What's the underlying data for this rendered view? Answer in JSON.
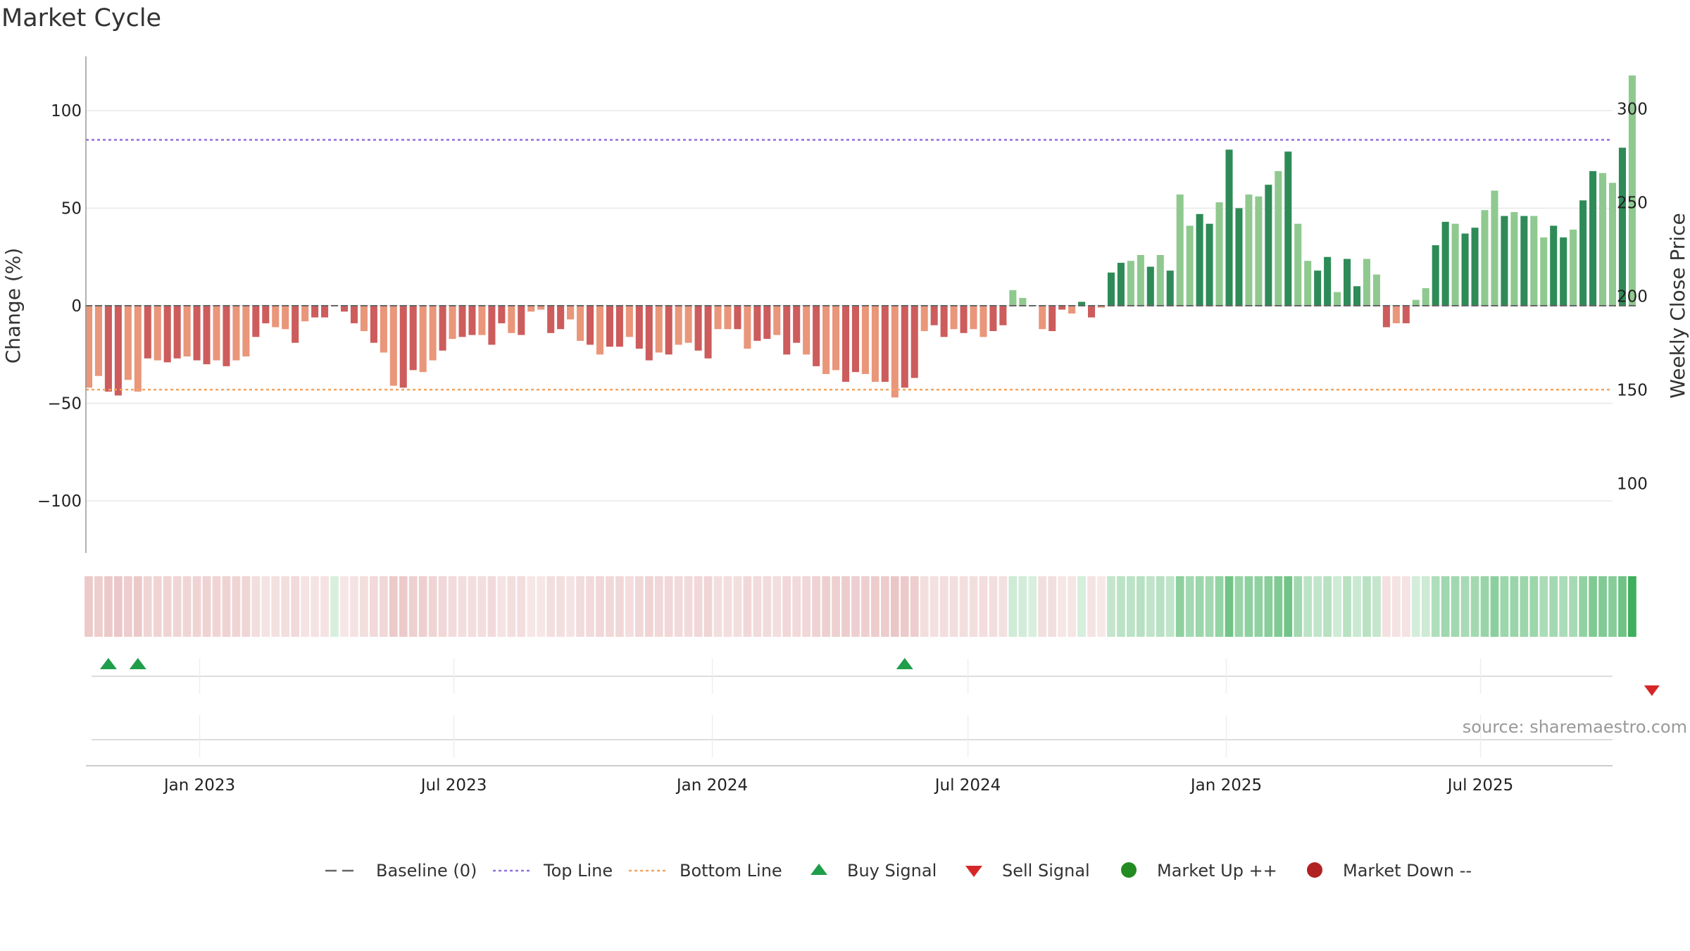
{
  "title": "Market Cycle",
  "source": "source: sharemaestro.com",
  "colors": {
    "neg_dark": "#cd5c5c",
    "neg_light": "#e9967a",
    "pos_dark": "#2e8b57",
    "pos_light": "#8fc98f",
    "top_line": "#9370db",
    "bottom_line": "#f4a460",
    "buy": "#1f9e4a",
    "sell": "#d62728",
    "market_up": "#228b22",
    "market_down": "#b22222"
  },
  "chart_data": {
    "type": "bar",
    "ylabel_left": "Change (%)",
    "ylabel_right": "Weekly Close Price",
    "ylim_left": [
      -128,
      127
    ],
    "ylim_right": [
      52,
      350
    ],
    "yticks_left": [
      100,
      50,
      0,
      -50,
      -100
    ],
    "yticks_left_labels": [
      "100",
      "50",
      "0",
      "−50",
      "−100"
    ],
    "yticks_right": [
      300,
      250,
      200,
      150,
      100
    ],
    "top_line": 85,
    "bottom_line": -43,
    "start_date": "2022-10-14",
    "x_range": [
      "2022-10-12",
      "2025-10-03"
    ],
    "x_ticks": [
      "2023-01-01",
      "2023-07-01",
      "2024-01-01",
      "2024-07-01",
      "2025-01-01",
      "2025-07-01"
    ],
    "x_tick_labels": [
      "Jan 2023",
      "Jul 2023",
      "Jan 2024",
      "Jul 2024",
      "Jan 2025",
      "Jul 2025"
    ],
    "values": [
      -42,
      -36,
      -44,
      -46,
      -38,
      -44,
      -27,
      -28,
      -29,
      -27,
      -26,
      -28,
      -30,
      -28,
      -31,
      -28,
      -26,
      -16,
      -9,
      -11,
      -12,
      -19,
      -8,
      -6,
      -6,
      0,
      -3,
      -9,
      -13,
      -19,
      -24,
      -41,
      -42,
      -33,
      -34,
      -28,
      -23,
      -17,
      -16,
      -15,
      -15,
      -20,
      -9,
      -14,
      -15,
      -3,
      -2,
      -14,
      -12,
      -7,
      -18,
      -20,
      -25,
      -21,
      -21,
      -16,
      -22,
      -28,
      -24,
      -25,
      -20,
      -19,
      -23,
      -27,
      -12,
      -12,
      -12,
      -22,
      -18,
      -17,
      -15,
      -25,
      -19,
      -25,
      -31,
      -35,
      -33,
      -39,
      -34,
      -35,
      -39,
      -39,
      -47,
      -42,
      -37,
      -13,
      -10,
      -16,
      -12,
      -14,
      -12,
      -16,
      -13,
      -10,
      8,
      4,
      0,
      -12,
      -13,
      -2,
      -4,
      2,
      -6,
      -1,
      17,
      22,
      23,
      26,
      20,
      26,
      18,
      57,
      41,
      47,
      42,
      53,
      80,
      50,
      57,
      56,
      62,
      69,
      79,
      42,
      23,
      18,
      25,
      7,
      24,
      10,
      24,
      16,
      -11,
      -9,
      -9,
      3,
      9,
      31,
      43,
      42,
      37,
      40,
      49,
      59,
      46,
      48,
      46,
      46,
      35,
      41,
      35,
      39,
      54,
      69,
      68,
      63,
      81,
      118
    ],
    "markers": [
      {
        "type": "buy",
        "index": 2
      },
      {
        "type": "buy",
        "index": 5
      },
      {
        "type": "buy",
        "index": 83
      },
      {
        "type": "sell",
        "index": 159
      }
    ],
    "legend": [
      "Baseline (0)",
      "Top Line",
      "Bottom Line",
      "Buy Signal",
      "Sell Signal",
      "Market Up ++",
      "Market Down --"
    ],
    "legend_placement": "bottom-center"
  }
}
